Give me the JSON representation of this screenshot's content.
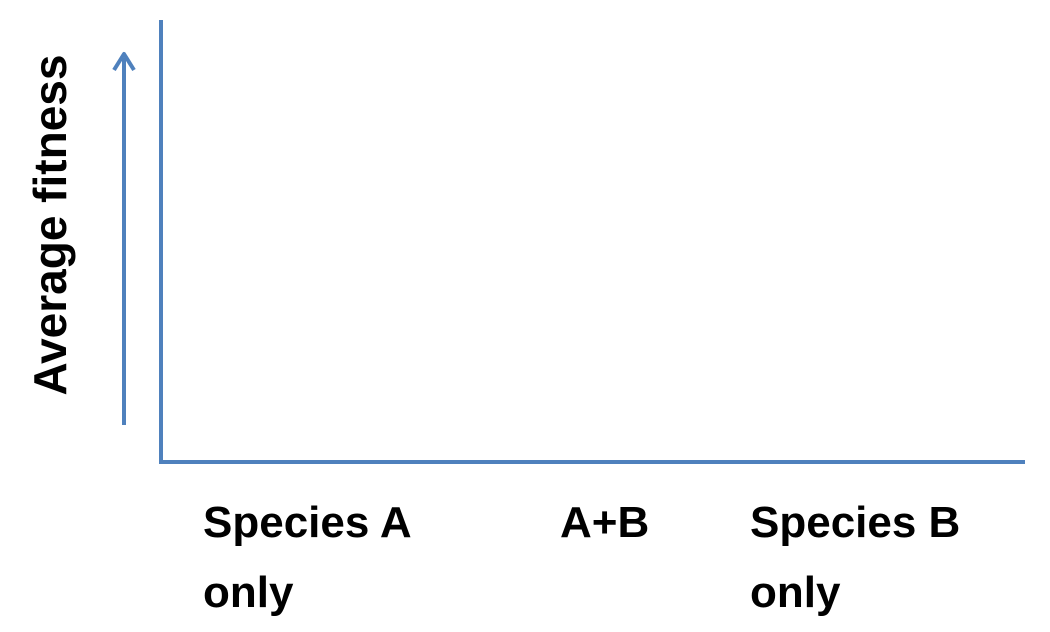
{
  "chart_data": {
    "type": "bar",
    "y_label": "Average fitness",
    "categories": [
      "Species A only",
      "A+B",
      "Species B only"
    ],
    "color": "#4f81bd"
  }
}
